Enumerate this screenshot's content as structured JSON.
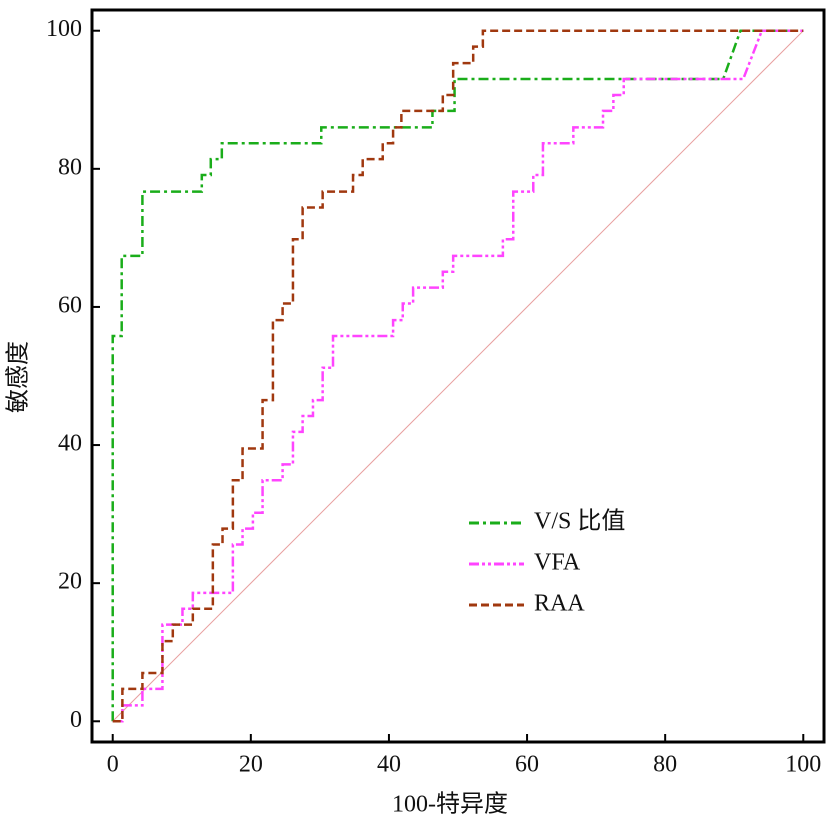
{
  "chart_data": {
    "type": "line",
    "xlabel": "100-特异度",
    "ylabel": "敏感度",
    "xlim": [
      -3,
      103
    ],
    "ylim": [
      -3,
      103
    ],
    "xticks": [
      0,
      20,
      40,
      60,
      80,
      100
    ],
    "yticks": [
      0,
      20,
      40,
      60,
      80,
      100
    ],
    "legend": "lower right",
    "diagonal": {
      "x": [
        0,
        100
      ],
      "values": [
        0,
        100
      ],
      "color": "#e8a0a0"
    },
    "series": [
      {
        "name": "V/S 比值",
        "color": "#1aad1a",
        "dash": "10,4,3,4",
        "x": [
          0,
          0,
          1.3,
          1.3,
          4.3,
          4.3,
          12.9,
          12.9,
          14.2,
          14.2,
          15.8,
          15.8,
          30.2,
          30.2,
          46.3,
          46.3,
          49.5,
          49.5,
          88.4,
          90.9,
          100
        ],
        "values": [
          0,
          55.8,
          55.8,
          67.4,
          67.4,
          76.7,
          76.7,
          79.1,
          79.1,
          81.4,
          81.4,
          83.7,
          83.7,
          86,
          86,
          88.4,
          88.4,
          93,
          93,
          100,
          100
        ]
      },
      {
        "name": "VFA",
        "color": "#ff44ff",
        "dash": "10,3,3,3,3,3",
        "x": [
          0,
          1.4,
          1.4,
          4.3,
          4.3,
          7.2,
          7.2,
          10.1,
          10.1,
          11.6,
          11.6,
          17.4,
          17.4,
          18.8,
          18.8,
          20.3,
          20.3,
          21.7,
          21.7,
          24.6,
          24.6,
          26.1,
          26.1,
          27.5,
          27.5,
          29,
          29,
          30.4,
          30.4,
          31.9,
          31.9,
          40.6,
          40.6,
          42,
          42,
          43.5,
          43.5,
          47.8,
          47.8,
          49.3,
          49.3,
          56.5,
          56.5,
          58,
          58,
          60.9,
          60.9,
          62.3,
          62.3,
          66.7,
          66.7,
          71,
          71,
          72.5,
          72.5,
          74,
          74,
          91.3,
          94,
          100
        ],
        "values": [
          0,
          0,
          2.3,
          2.3,
          4.7,
          4.7,
          14,
          14,
          16.3,
          16.3,
          18.6,
          18.6,
          25.6,
          25.6,
          27.9,
          27.9,
          30.2,
          30.2,
          34.9,
          34.9,
          37.2,
          37.2,
          41.9,
          41.9,
          44.2,
          44.2,
          46.5,
          46.5,
          51.2,
          51.2,
          55.8,
          55.8,
          58.1,
          58.1,
          60.5,
          60.5,
          62.8,
          62.8,
          65.1,
          65.1,
          67.4,
          67.4,
          69.8,
          69.8,
          76.7,
          76.7,
          79.1,
          79.1,
          83.7,
          83.7,
          86,
          86,
          88.4,
          88.4,
          90.7,
          90.7,
          93,
          93,
          100,
          100
        ]
      },
      {
        "name": "RAA",
        "color": "#a0380f",
        "dash": "8,4",
        "x": [
          0,
          1.4,
          1.4,
          4.3,
          4.3,
          7.2,
          7.2,
          8.7,
          8.7,
          11.6,
          11.6,
          14.5,
          14.5,
          15.9,
          15.9,
          17.4,
          17.4,
          18.8,
          18.8,
          21.7,
          21.7,
          23.2,
          23.2,
          24.6,
          24.6,
          26.1,
          26.1,
          27.5,
          27.5,
          30.4,
          30.4,
          34.8,
          34.8,
          36.2,
          36.2,
          39.1,
          39.1,
          40.6,
          40.6,
          41.8,
          41.8,
          47.8,
          47.8,
          49.3,
          49.3,
          52.2,
          52.2,
          53.6,
          53.6,
          100
        ],
        "values": [
          0,
          0,
          4.7,
          4.7,
          7,
          7,
          11.6,
          11.6,
          14,
          14,
          16.3,
          16.3,
          25.6,
          25.6,
          27.9,
          27.9,
          34.9,
          34.9,
          39.5,
          39.5,
          46.5,
          46.5,
          58.1,
          58.1,
          60.5,
          60.5,
          69.8,
          69.8,
          74.4,
          74.4,
          76.7,
          76.7,
          79.1,
          79.1,
          81.4,
          81.4,
          83.7,
          83.7,
          86,
          86,
          88.4,
          88.4,
          90.7,
          90.7,
          95.3,
          95.3,
          97.7,
          97.7,
          100,
          100
        ]
      }
    ]
  }
}
